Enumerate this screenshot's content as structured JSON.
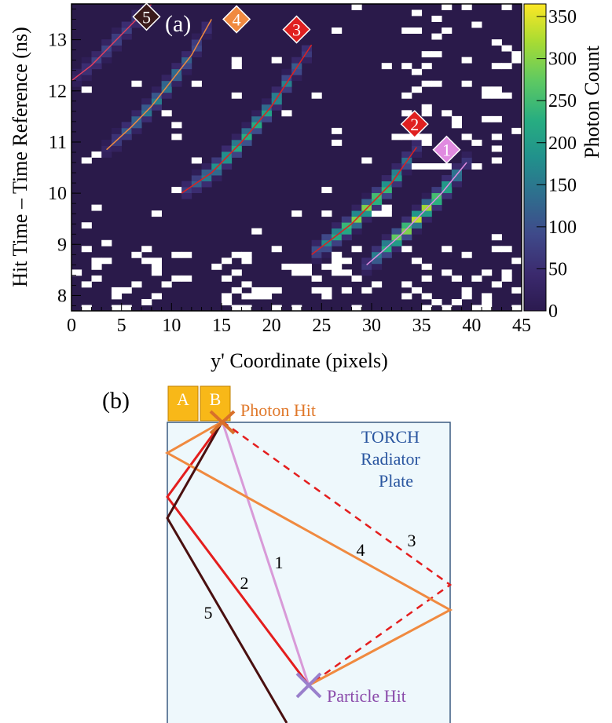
{
  "figure": {
    "panel_a_label": "(a)",
    "panel_b_label": "(b)"
  },
  "chart_data": {
    "type": "heatmap",
    "xlabel": "y' Coordinate (pixels)",
    "ylabel": "Hit Time – Time Reference (ns)",
    "zlabel": "Photon Count",
    "xlim": [
      0,
      45
    ],
    "ylim": [
      7.7,
      13.7
    ],
    "zlim": [
      0,
      365
    ],
    "x_ticks": [
      "0",
      "5",
      "10",
      "15",
      "20",
      "25",
      "30",
      "35",
      "40",
      "45"
    ],
    "y_ticks": [
      "8",
      "9",
      "10",
      "11",
      "12",
      "13"
    ],
    "z_ticks": [
      "0",
      "50",
      "100",
      "150",
      "200",
      "250",
      "300",
      "350"
    ],
    "colormap": [
      "#2b1a4f",
      "#3b2a6e",
      "#3f4a8a",
      "#2e6f8e",
      "#21918c",
      "#27ad81",
      "#5ec962",
      "#aadc32",
      "#fde725"
    ],
    "background_color": "#2a1a4a",
    "empty_bin_color": "#ffffff",
    "bands": [
      {
        "name": "1",
        "color": "#e08ae0",
        "x": [
          29.5,
          31,
          33,
          35,
          37,
          39.5
        ],
        "y": [
          8.6,
          8.85,
          9.2,
          9.6,
          10.0,
          10.6
        ],
        "peak": 330
      },
      {
        "name": "2",
        "color": "#e02020",
        "x": [
          24,
          26,
          28,
          30,
          32,
          34.5
        ],
        "y": [
          8.8,
          9.1,
          9.4,
          9.8,
          10.2,
          10.9
        ],
        "peak": 300
      },
      {
        "name": "3",
        "color": "#e02020",
        "x": [
          11,
          14,
          17,
          20,
          22,
          24
        ],
        "y": [
          10.0,
          10.4,
          11.0,
          11.7,
          12.3,
          12.9
        ],
        "peak": 230
      },
      {
        "name": "4",
        "color": "#f08a40",
        "x": [
          3.5,
          6,
          8,
          10,
          12,
          14
        ],
        "y": [
          10.85,
          11.3,
          11.7,
          12.2,
          12.7,
          13.4
        ],
        "peak": 160
      },
      {
        "name": "5",
        "color": "#e04060",
        "x": [
          0,
          2,
          4,
          6,
          8
        ],
        "y": [
          12.2,
          12.5,
          12.9,
          13.3,
          13.7
        ],
        "peak": 90
      }
    ],
    "markers": [
      {
        "label": "1",
        "x": 37.5,
        "y": 10.85,
        "fill": "#e08ae0",
        "text_color": "#ffffff"
      },
      {
        "label": "2",
        "x": 34.3,
        "y": 11.35,
        "fill": "#e02020",
        "text_color": "#ffffff"
      },
      {
        "label": "3",
        "x": 22.5,
        "y": 13.2,
        "fill": "#e02020",
        "text_color": "#ffffff"
      },
      {
        "label": "4",
        "x": 16.5,
        "y": 13.4,
        "fill": "#f08a40",
        "text_color": "#ffffff"
      },
      {
        "label": "5",
        "x": 7.5,
        "y": 13.45,
        "fill": "#3a1a1a",
        "text_color": "#ffffff"
      }
    ]
  },
  "diagram": {
    "pixel_a": "A",
    "pixel_b": "B",
    "photon_hit": "Photon Hit",
    "particle_hit": "Particle Hit",
    "plate_line1": "TORCH",
    "plate_line2": "Radiator",
    "plate_line3": "Plate",
    "path_labels": [
      "1",
      "2",
      "3",
      "4",
      "5"
    ],
    "colors": {
      "plate_fill": "#eef8fc",
      "plate_edge": "#3a5a80",
      "pixel_fill": "#f8b818",
      "path1": "#d89ad8",
      "path2": "#e41e1e",
      "path3": "#e41e1e",
      "path4": "#f08a40",
      "path5": "#4a1010",
      "photon_marker": "#d8702a",
      "particle_marker": "#9a80cc",
      "photon_text": "#e0782a",
      "particle_text": "#8a4aaa",
      "plate_text": "#2a56a0"
    }
  }
}
